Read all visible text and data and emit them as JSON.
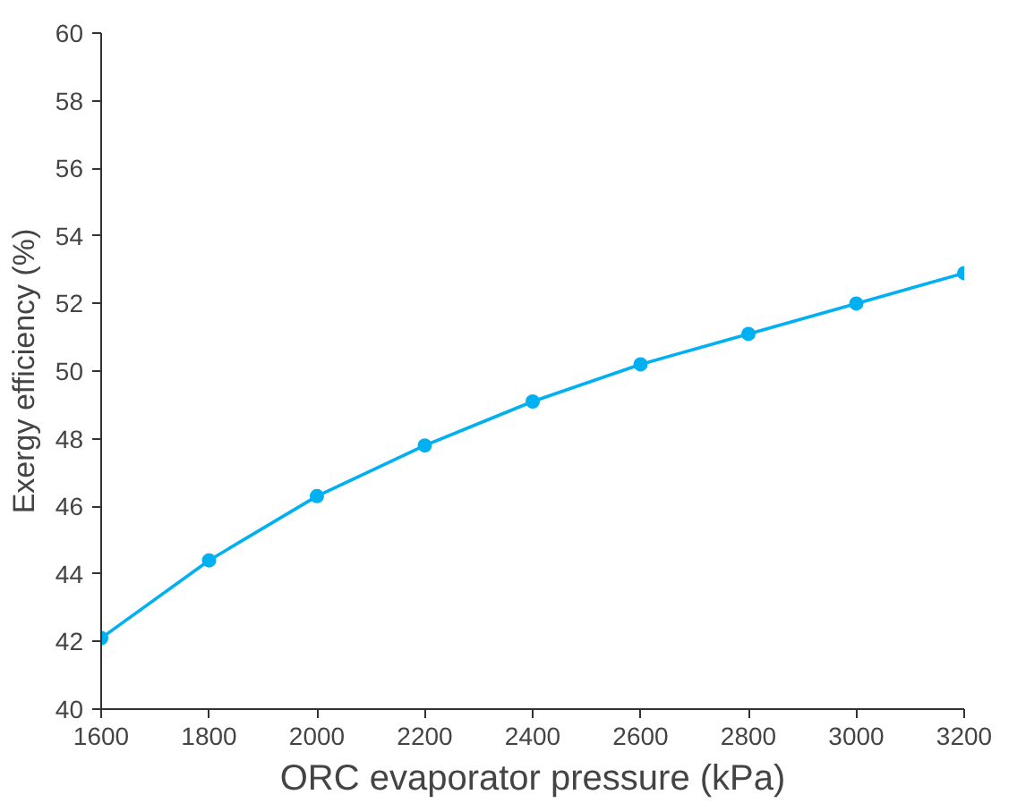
{
  "chart_data": {
    "type": "line",
    "xlabel": "ORC evaporator pressure (kPa)",
    "ylabel": "Exergy efficiency (%)",
    "x": [
      1600,
      1800,
      2000,
      2200,
      2400,
      2600,
      2800,
      3000,
      3200
    ],
    "series": [
      {
        "color": "#00b0f0",
        "values": [
          42.1,
          44.4,
          46.3,
          47.8,
          49.1,
          50.2,
          51.1,
          52.0,
          52.9
        ]
      }
    ],
    "xlim": [
      1600,
      3200
    ],
    "xticks": [
      1600,
      1800,
      2000,
      2200,
      2400,
      2600,
      2800,
      3000,
      3200
    ],
    "ylim": [
      40,
      60
    ],
    "yticks": [
      40,
      42,
      44,
      46,
      48,
      50,
      52,
      54,
      56,
      58,
      60
    ],
    "marker": "circle",
    "line_style": "solid",
    "grid": false
  }
}
